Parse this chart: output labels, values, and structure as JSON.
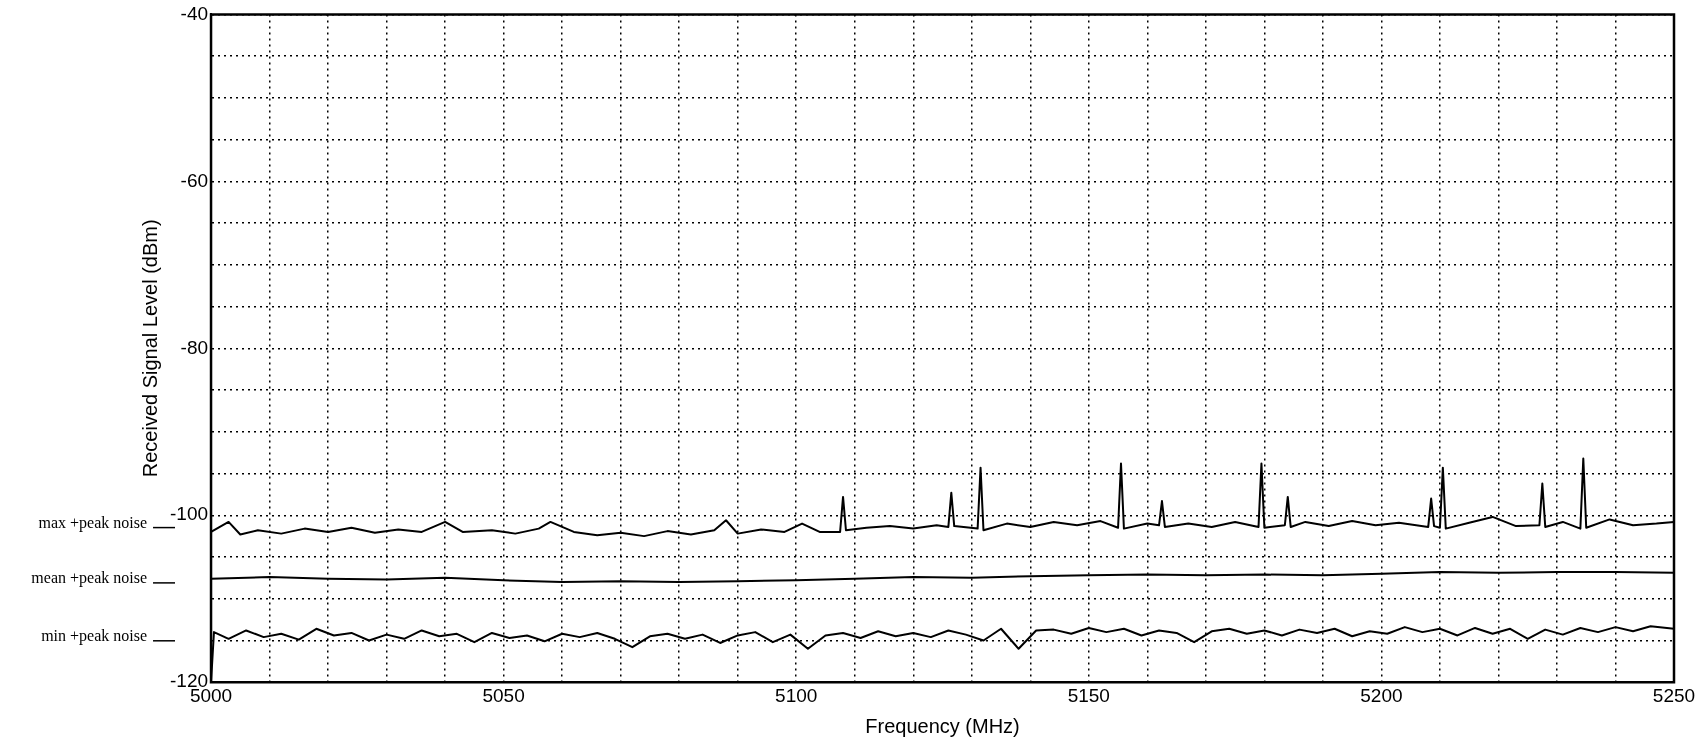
{
  "chart_data": {
    "type": "line",
    "xlabel": "Frequency (MHz)",
    "ylabel": "Received Signal Level (dBm)",
    "xlim": [
      5000,
      5250
    ],
    "ylim": [
      -120,
      -40
    ],
    "xticks": [
      5000,
      {
        "value": 5010,
        "label": null
      },
      {
        "value": 5020,
        "label": null
      },
      {
        "value": 5030,
        "label": null
      },
      {
        "value": 5040,
        "label": null
      },
      5050,
      {
        "value": 5060,
        "label": null
      },
      {
        "value": 5070,
        "label": null
      },
      {
        "value": 5080,
        "label": null
      },
      {
        "value": 5090,
        "label": null
      },
      5100,
      {
        "value": 5110,
        "label": null
      },
      {
        "value": 5120,
        "label": null
      },
      {
        "value": 5130,
        "label": null
      },
      {
        "value": 5140,
        "label": null
      },
      5150,
      {
        "value": 5160,
        "label": null
      },
      {
        "value": 5170,
        "label": null
      },
      {
        "value": 5180,
        "label": null
      },
      {
        "value": 5190,
        "label": null
      },
      5200,
      {
        "value": 5210,
        "label": null
      },
      {
        "value": 5220,
        "label": null
      },
      {
        "value": 5230,
        "label": null
      },
      {
        "value": 5240,
        "label": null
      },
      5250
    ],
    "yticks": [
      -120,
      {
        "value": -115,
        "label": null
      },
      {
        "value": -110,
        "label": null
      },
      {
        "value": -105,
        "label": null
      },
      -100,
      {
        "value": -95,
        "label": null
      },
      {
        "value": -90,
        "label": null
      },
      {
        "value": -85,
        "label": null
      },
      -80,
      {
        "value": -75,
        "label": null
      },
      {
        "value": -70,
        "label": null
      },
      {
        "value": -65,
        "label": null
      },
      -60,
      {
        "value": -55,
        "label": null
      },
      {
        "value": -50,
        "label": null
      },
      {
        "value": -45,
        "label": null
      },
      -40
    ],
    "grid": true,
    "legend": "left",
    "marker": "none",
    "line_style": "solid",
    "series": [
      {
        "name": "max +peak noise",
        "color": "#000000",
        "x": [
          5000,
          5003,
          5005,
          5008,
          5012,
          5016,
          5020,
          5024,
          5028,
          5032,
          5036,
          5040,
          5043,
          5048,
          5052,
          5056,
          5058,
          5062,
          5066,
          5070,
          5074,
          5078,
          5082,
          5086,
          5088,
          5090,
          5094,
          5098,
          5101,
          5104,
          5107.5,
          5108,
          5108.5,
          5112,
          5116,
          5120,
          5124,
          5126,
          5126.5,
          5127,
          5131,
          5131.5,
          5132,
          5136,
          5140,
          5144,
          5148,
          5152,
          5155,
          5155.5,
          5156,
          5160,
          5162,
          5162.5,
          5163,
          5167,
          5171,
          5175,
          5179,
          5179.5,
          5180,
          5183.5,
          5184,
          5184.5,
          5187,
          5191,
          5195,
          5199,
          5203,
          5208,
          5208.5,
          5209,
          5210,
          5210.5,
          5211,
          5215,
          5219,
          5223,
          5227,
          5227.5,
          5228,
          5231,
          5234,
          5234.5,
          5235,
          5239,
          5243,
          5247,
          5250
        ],
        "values": [
          -102,
          -100.8,
          -102.3,
          -101.8,
          -102.2,
          -101.6,
          -102,
          -101.5,
          -102.1,
          -101.7,
          -102,
          -100.8,
          -102,
          -101.8,
          -102.2,
          -101.6,
          -100.8,
          -102,
          -102.4,
          -102.1,
          -102.5,
          -101.9,
          -102.3,
          -101.8,
          -100.6,
          -102.2,
          -101.7,
          -102,
          -101,
          -102,
          -102,
          -97.8,
          -101.8,
          -101.5,
          -101.3,
          -101.6,
          -101.2,
          -101.4,
          -97.3,
          -101.3,
          -101.6,
          -94.3,
          -101.8,
          -101,
          -101.4,
          -100.8,
          -101.2,
          -100.7,
          -101.5,
          -93.8,
          -101.6,
          -101,
          -101.2,
          -98.3,
          -101.4,
          -101,
          -101.4,
          -100.8,
          -101.4,
          -93.8,
          -101.5,
          -101.2,
          -97.8,
          -101.4,
          -100.8,
          -101.3,
          -100.7,
          -101.2,
          -100.9,
          -101.4,
          -98,
          -101.3,
          -101.5,
          -94.3,
          -101.6,
          -100.9,
          -100.2,
          -101.3,
          -101.2,
          -96.2,
          -101.4,
          -100.8,
          -101.6,
          -93.2,
          -101.5,
          -100.5,
          -101.2,
          -101,
          -100.8
        ]
      },
      {
        "name": "mean +peak noise",
        "color": "#000000",
        "x": [
          5000,
          5010,
          5020,
          5030,
          5040,
          5050,
          5060,
          5070,
          5080,
          5090,
          5100,
          5110,
          5120,
          5130,
          5140,
          5150,
          5160,
          5170,
          5180,
          5190,
          5200,
          5210,
          5220,
          5230,
          5240,
          5250
        ],
        "values": [
          -107.6,
          -107.4,
          -107.6,
          -107.7,
          -107.5,
          -107.8,
          -108,
          -107.9,
          -108,
          -107.9,
          -107.8,
          -107.6,
          -107.4,
          -107.5,
          -107.3,
          -107.2,
          -107.1,
          -107.2,
          -107.1,
          -107.2,
          -107,
          -106.8,
          -106.9,
          -106.8,
          -106.8,
          -106.9
        ]
      },
      {
        "name": "min +peak noise",
        "color": "#000000",
        "x": [
          5000,
          5000.5,
          5003,
          5006,
          5009,
          5012,
          5015,
          5018,
          5021,
          5024,
          5027,
          5030,
          5033,
          5036,
          5039,
          5042,
          5045,
          5048,
          5051,
          5054,
          5057,
          5060,
          5063,
          5066,
          5069,
          5072,
          5075,
          5078,
          5081,
          5084,
          5087,
          5090,
          5093,
          5096,
          5099,
          5102,
          5105,
          5108,
          5111,
          5114,
          5117,
          5120,
          5123,
          5126,
          5129,
          5132,
          5135,
          5138,
          5141,
          5144,
          5147,
          5150,
          5153,
          5156,
          5159,
          5162,
          5165,
          5168,
          5171,
          5174,
          5177,
          5180,
          5183,
          5186,
          5189,
          5192,
          5195,
          5198,
          5201,
          5204,
          5207,
          5210,
          5213,
          5216,
          5219,
          5222,
          5225,
          5228,
          5231,
          5234,
          5237,
          5240,
          5243,
          5246,
          5250
        ],
        "values": [
          -120,
          -114,
          -114.8,
          -113.8,
          -114.6,
          -114.2,
          -114.9,
          -113.6,
          -114.4,
          -114.1,
          -115,
          -114.3,
          -114.8,
          -113.8,
          -114.5,
          -114.2,
          -115.2,
          -114.1,
          -114.7,
          -114.4,
          -115.1,
          -114.2,
          -114.6,
          -114.1,
          -114.8,
          -115.8,
          -114.5,
          -114.2,
          -114.8,
          -114.3,
          -115.3,
          -114.4,
          -114,
          -115.2,
          -114.3,
          -116,
          -114.4,
          -114.1,
          -114.7,
          -113.9,
          -114.5,
          -114.1,
          -114.6,
          -113.8,
          -114.3,
          -115,
          -113.6,
          -116,
          -113.8,
          -113.7,
          -114.2,
          -113.5,
          -114,
          -113.6,
          -114.4,
          -113.8,
          -114.1,
          -115.2,
          -113.9,
          -113.6,
          -114.2,
          -113.8,
          -114.4,
          -113.7,
          -114.1,
          -113.6,
          -114.5,
          -113.9,
          -114.2,
          -113.4,
          -114,
          -113.6,
          -114.4,
          -113.5,
          -114.2,
          -113.6,
          -114.8,
          -113.7,
          -114.3,
          -113.5,
          -114,
          -113.4,
          -113.9,
          -113.3,
          -113.6
        ]
      }
    ]
  }
}
